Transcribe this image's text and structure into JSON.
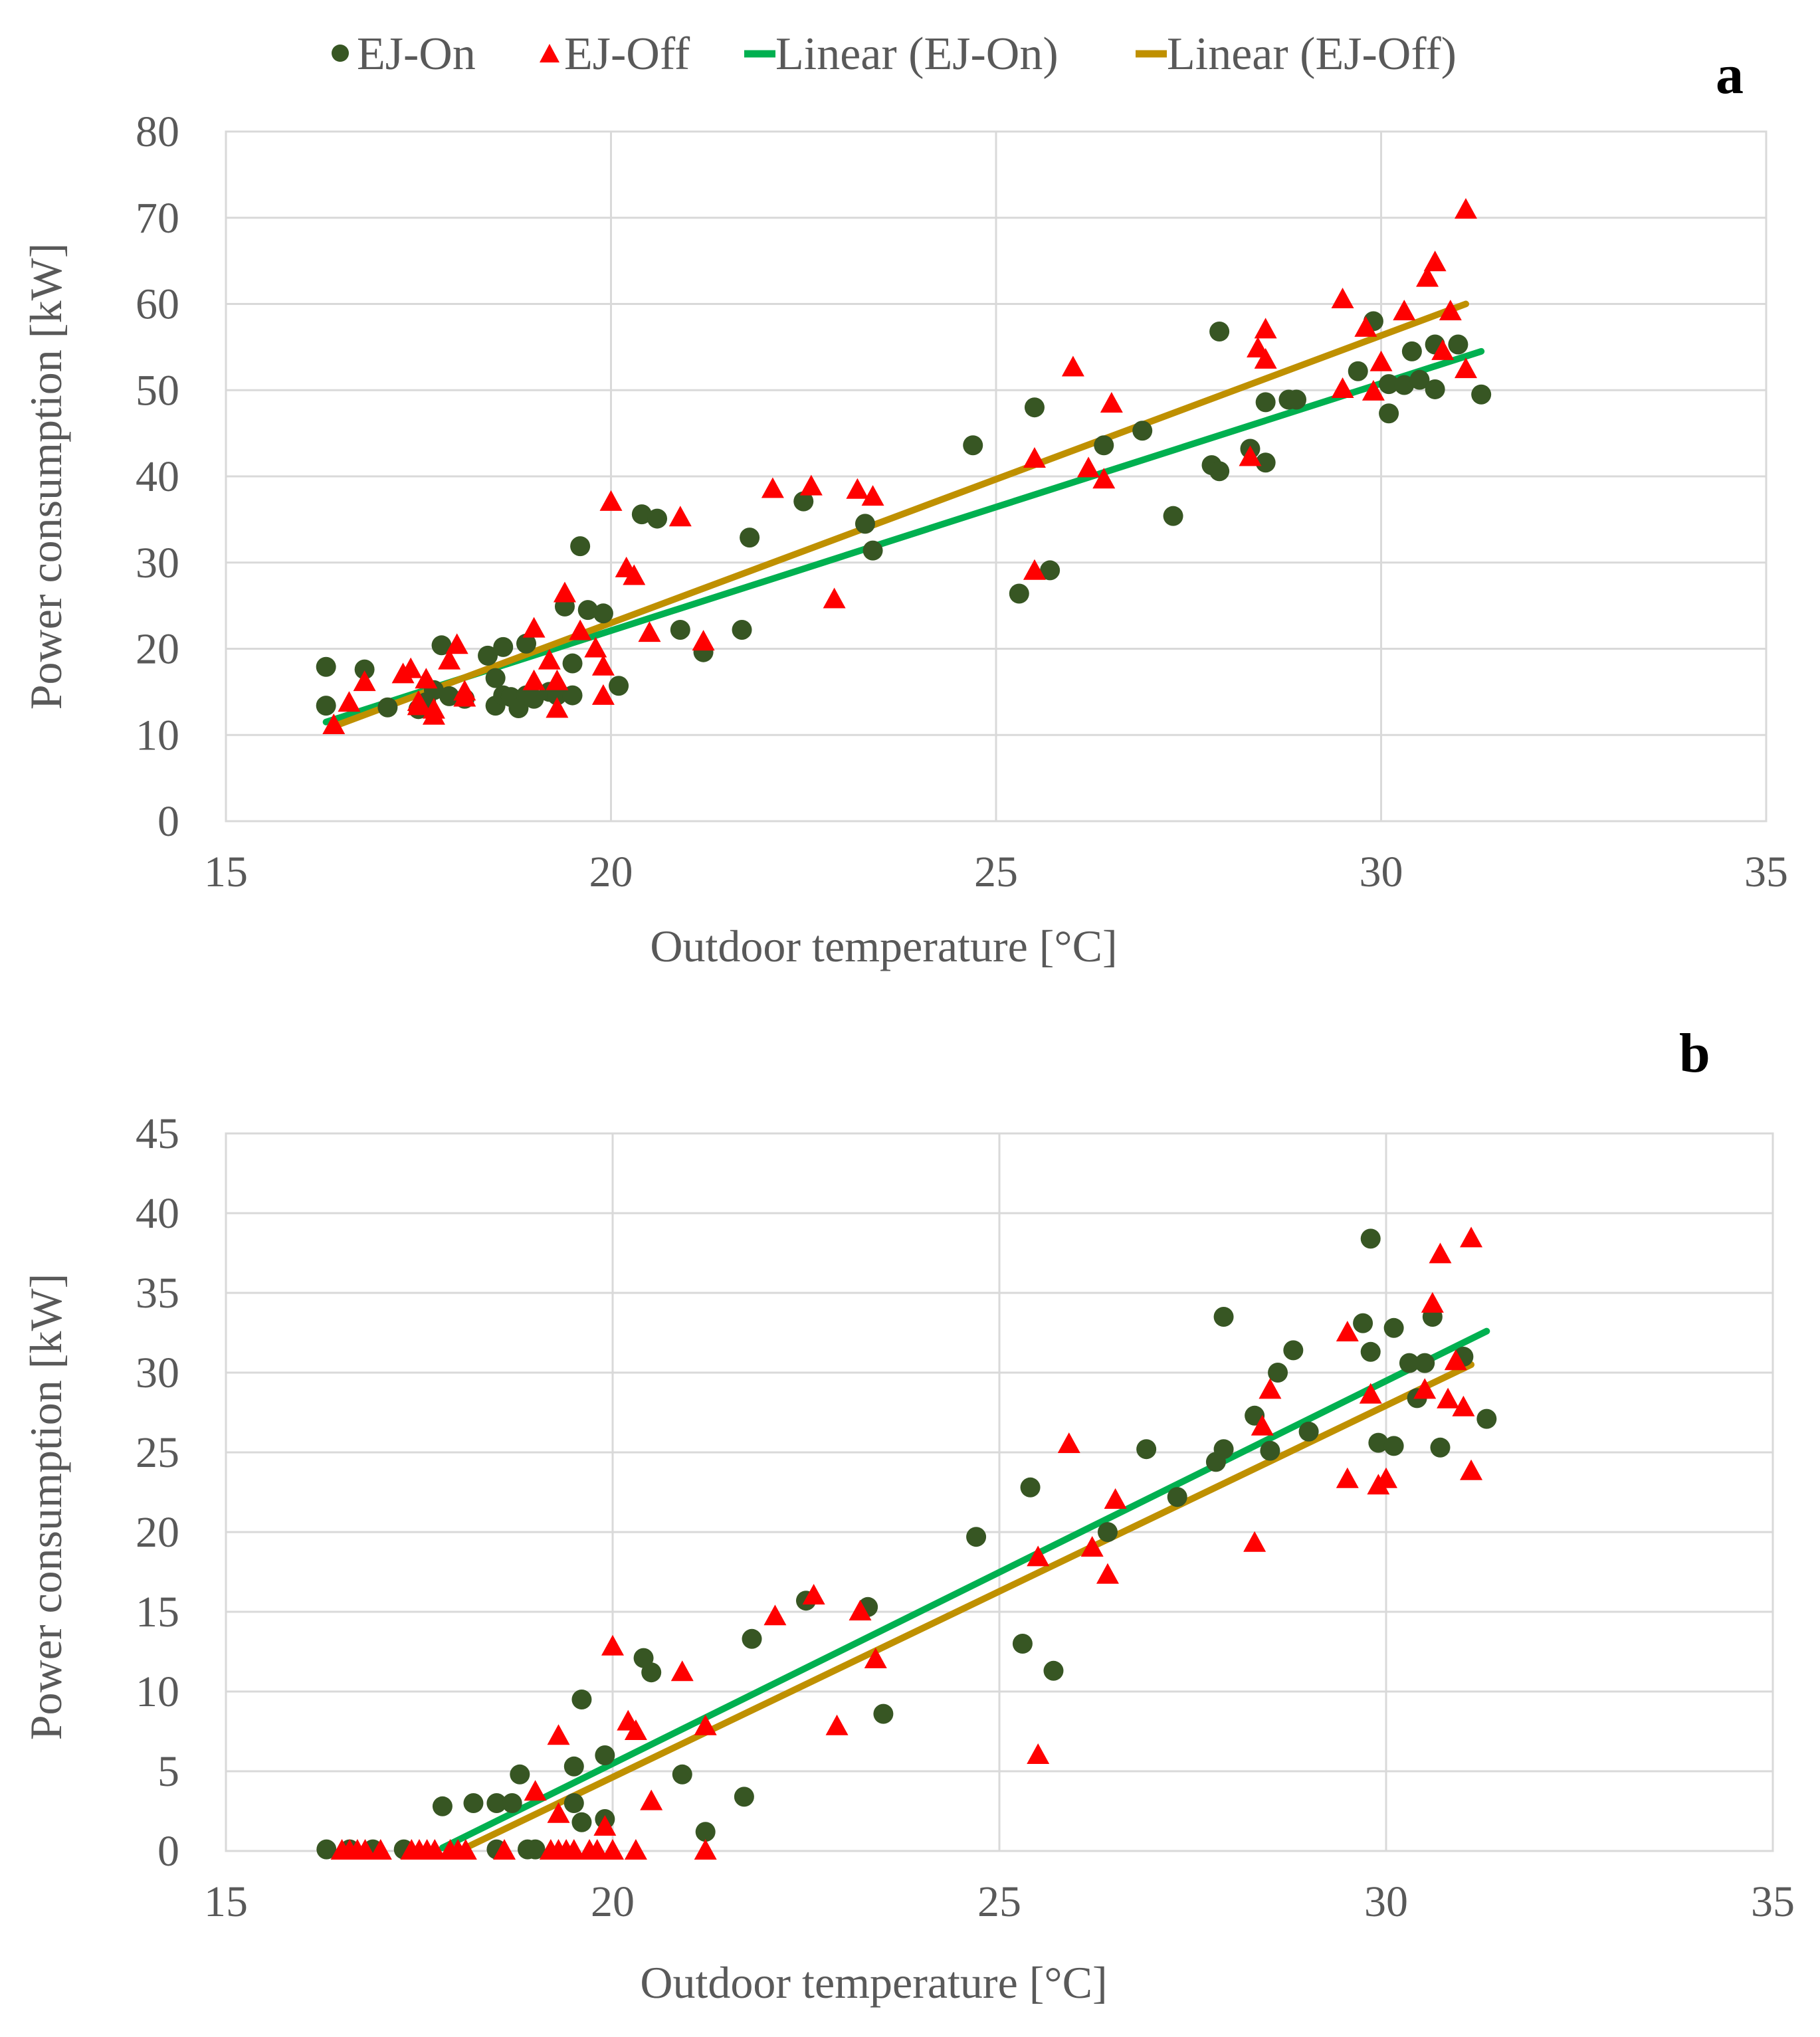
{
  "legend": [
    {
      "label": "EJ-On",
      "marker": "circle",
      "color": "#375623"
    },
    {
      "label": "EJ-Off",
      "marker": "triangle",
      "color": "#ff0000"
    },
    {
      "label": "Linear (EJ-On)",
      "marker": "line",
      "color": "#00b050"
    },
    {
      "label": "Linear (EJ-Off)",
      "marker": "line",
      "color": "#bf9000"
    }
  ],
  "colors": {
    "on": "#375623",
    "off": "#ff0000",
    "fit_on": "#00b050",
    "fit_off": "#bf9000",
    "grid": "#d9d9d9",
    "text": "#595959"
  },
  "chart_data": [
    {
      "panel": "a",
      "type": "scatter",
      "xlabel": "Outdoor temperature [°C]",
      "ylabel": "Power consumption [kW]",
      "xlim": [
        15,
        35
      ],
      "ylim": [
        0,
        80
      ],
      "xticks": [
        15,
        20,
        25,
        30,
        35
      ],
      "yticks": [
        0,
        10,
        20,
        30,
        40,
        50,
        60,
        70,
        80
      ],
      "series": [
        {
          "name": "EJ-On",
          "marker": "circle",
          "x": [
            16.3,
            16.3,
            16.8,
            17.1,
            17.5,
            17.6,
            17.7,
            17.8,
            17.9,
            18.1,
            18.4,
            18.5,
            18.5,
            18.6,
            18.6,
            18.7,
            18.8,
            18.9,
            18.9,
            19.0,
            19.2,
            19.3,
            19.4,
            19.5,
            19.5,
            19.6,
            19.7,
            19.9,
            20.1,
            20.4,
            20.6,
            20.9,
            21.2,
            21.7,
            21.8,
            22.5,
            23.3,
            23.4,
            24.7,
            25.3,
            25.5,
            25.7,
            26.4,
            26.9,
            27.3,
            27.8,
            27.9,
            27.9,
            28.3,
            28.5,
            28.5,
            28.8,
            28.9,
            29.7,
            29.9,
            30.1,
            30.1,
            30.3,
            30.4,
            30.5,
            30.7,
            30.7,
            31.0,
            31.3
          ],
          "y": [
            13.4,
            17.9,
            17.6,
            13.2,
            13.0,
            13.8,
            15.2,
            20.4,
            14.5,
            14.2,
            19.2,
            13.4,
            16.6,
            20.2,
            14.6,
            14.4,
            13.1,
            20.6,
            14.6,
            14.2,
            15.0,
            14.6,
            24.9,
            14.6,
            18.3,
            31.9,
            24.5,
            24.1,
            15.7,
            35.6,
            35.1,
            22.2,
            19.6,
            22.2,
            32.9,
            37.1,
            34.5,
            31.4,
            43.6,
            26.4,
            48.0,
            29.1,
            43.6,
            45.3,
            35.4,
            41.3,
            40.6,
            56.8,
            43.2,
            48.6,
            41.6,
            48.9,
            48.9,
            52.2,
            58.0,
            50.7,
            47.3,
            50.6,
            54.5,
            51.2,
            55.3,
            50.1,
            55.3,
            49.5
          ]
        },
        {
          "name": "EJ-Off",
          "marker": "triangle",
          "x": [
            16.4,
            16.6,
            16.8,
            17.3,
            17.4,
            17.5,
            17.5,
            17.6,
            17.7,
            17.7,
            17.9,
            18.0,
            18.1,
            18.1,
            19.0,
            19.0,
            19.2,
            19.3,
            19.3,
            19.4,
            19.6,
            19.8,
            19.9,
            19.9,
            20.0,
            20.2,
            20.3,
            20.5,
            20.9,
            21.2,
            22.1,
            22.6,
            22.9,
            23.2,
            23.4,
            25.5,
            25.5,
            26.0,
            26.2,
            26.4,
            26.5,
            28.3,
            28.4,
            28.5,
            28.5,
            29.5,
            29.5,
            29.8,
            29.9,
            30.0,
            30.3,
            30.6,
            30.7,
            30.8,
            30.9,
            31.1,
            31.1
          ],
          "y": [
            11.1,
            13.7,
            16.1,
            17.0,
            17.6,
            13.3,
            13.8,
            16.4,
            12.9,
            12.2,
            18.6,
            20.4,
            14.3,
            15.0,
            16.2,
            22.3,
            18.6,
            13.0,
            16.2,
            26.4,
            22.0,
            20.0,
            14.5,
            17.9,
            37.0,
            29.3,
            28.4,
            21.8,
            35.2,
            20.8,
            38.5,
            38.8,
            25.7,
            38.4,
            37.6,
            29.0,
            42.0,
            52.6,
            40.9,
            39.6,
            48.4,
            42.2,
            54.8,
            57.0,
            53.5,
            60.5,
            50.1,
            57.2,
            49.8,
            53.2,
            59.1,
            63.0,
            64.8,
            54.5,
            59.1,
            70.9,
            52.4
          ]
        },
        {
          "name": "Linear (EJ-On)",
          "type": "line",
          "x": [
            16.3,
            31.3
          ],
          "y": [
            11.5,
            54.5
          ]
        },
        {
          "name": "Linear (EJ-Off)",
          "type": "line",
          "x": [
            16.4,
            31.1
          ],
          "y": [
            11.0,
            60.0
          ]
        }
      ]
    },
    {
      "panel": "b",
      "type": "scatter",
      "xlabel": "Outdoor temperature [°C]",
      "ylabel": "Power consumption [kW]",
      "xlim": [
        15,
        35
      ],
      "ylim": [
        0,
        45
      ],
      "xticks": [
        15,
        20,
        25,
        30,
        35
      ],
      "yticks": [
        0,
        5,
        10,
        15,
        20,
        25,
        30,
        35,
        40,
        45
      ],
      "series": [
        {
          "name": "EJ-On",
          "marker": "circle",
          "x": [
            16.3,
            16.6,
            16.9,
            17.3,
            17.8,
            18.2,
            18.5,
            18.5,
            18.7,
            18.8,
            18.9,
            19.0,
            19.5,
            19.5,
            19.6,
            19.6,
            19.9,
            19.9,
            20.4,
            20.5,
            20.9,
            21.2,
            21.7,
            21.8,
            22.5,
            23.3,
            23.5,
            24.7,
            25.3,
            25.4,
            25.7,
            26.4,
            26.9,
            27.3,
            27.8,
            27.9,
            27.9,
            28.3,
            28.5,
            28.6,
            28.8,
            29.0,
            29.7,
            29.8,
            29.8,
            29.9,
            30.1,
            30.1,
            30.3,
            30.4,
            30.5,
            30.6,
            30.7,
            31.0,
            31.3
          ],
          "y": [
            0.1,
            0.1,
            0.1,
            0.1,
            2.8,
            3.0,
            0.1,
            3.0,
            3.0,
            4.8,
            0.1,
            0.1,
            3.0,
            5.3,
            9.5,
            1.8,
            2.0,
            6.0,
            12.1,
            11.2,
            4.8,
            1.2,
            3.4,
            13.3,
            15.7,
            15.3,
            8.6,
            19.7,
            13.0,
            22.8,
            11.3,
            20.0,
            25.2,
            22.2,
            24.4,
            25.2,
            33.5,
            27.3,
            25.1,
            30.0,
            31.4,
            26.3,
            33.1,
            38.4,
            31.3,
            25.6,
            32.8,
            25.4,
            30.6,
            28.4,
            30.6,
            33.5,
            25.3,
            31.0,
            27.1
          ]
        },
        {
          "name": "EJ-Off",
          "marker": "triangle",
          "x": [
            16.5,
            16.6,
            16.7,
            16.8,
            17.0,
            17.4,
            17.5,
            17.6,
            17.7,
            17.9,
            18.0,
            18.1,
            18.6,
            19.0,
            19.2,
            19.3,
            19.3,
            19.3,
            19.4,
            19.5,
            19.7,
            19.8,
            19.9,
            20.0,
            20.0,
            20.2,
            20.3,
            20.3,
            20.5,
            20.9,
            21.2,
            21.2,
            22.1,
            22.6,
            22.9,
            23.2,
            23.4,
            25.5,
            25.5,
            25.9,
            26.2,
            26.4,
            26.5,
            28.3,
            28.4,
            28.5,
            29.5,
            29.5,
            29.8,
            29.9,
            30.0,
            30.5,
            30.6,
            30.7,
            30.8,
            30.9,
            31.0,
            31.1,
            31.1
          ],
          "y": [
            0.0,
            0.0,
            0.0,
            0.0,
            0.0,
            0.0,
            0.0,
            0.0,
            0.0,
            0.0,
            0.0,
            0.0,
            0.0,
            3.7,
            0.0,
            0.0,
            2.3,
            7.2,
            0.0,
            0.0,
            0.0,
            0.0,
            1.5,
            0.0,
            12.8,
            8.1,
            7.5,
            0.0,
            3.1,
            11.2,
            7.8,
            0.0,
            14.7,
            16.0,
            7.8,
            15.0,
            12.0,
            6.0,
            18.4,
            25.5,
            19.0,
            17.3,
            22.0,
            19.3,
            26.6,
            28.9,
            32.5,
            23.3,
            28.6,
            22.9,
            23.3,
            28.9,
            34.3,
            37.4,
            28.3,
            30.7,
            27.8,
            38.4,
            23.8
          ]
        },
        {
          "name": "Linear (EJ-On)",
          "type": "line",
          "x": [
            17.8,
            31.3
          ],
          "y": [
            0.2,
            32.6
          ]
        },
        {
          "name": "Linear (EJ-Off)",
          "type": "line",
          "x": [
            18.1,
            31.1
          ],
          "y": [
            0.2,
            30.5
          ]
        }
      ]
    }
  ]
}
